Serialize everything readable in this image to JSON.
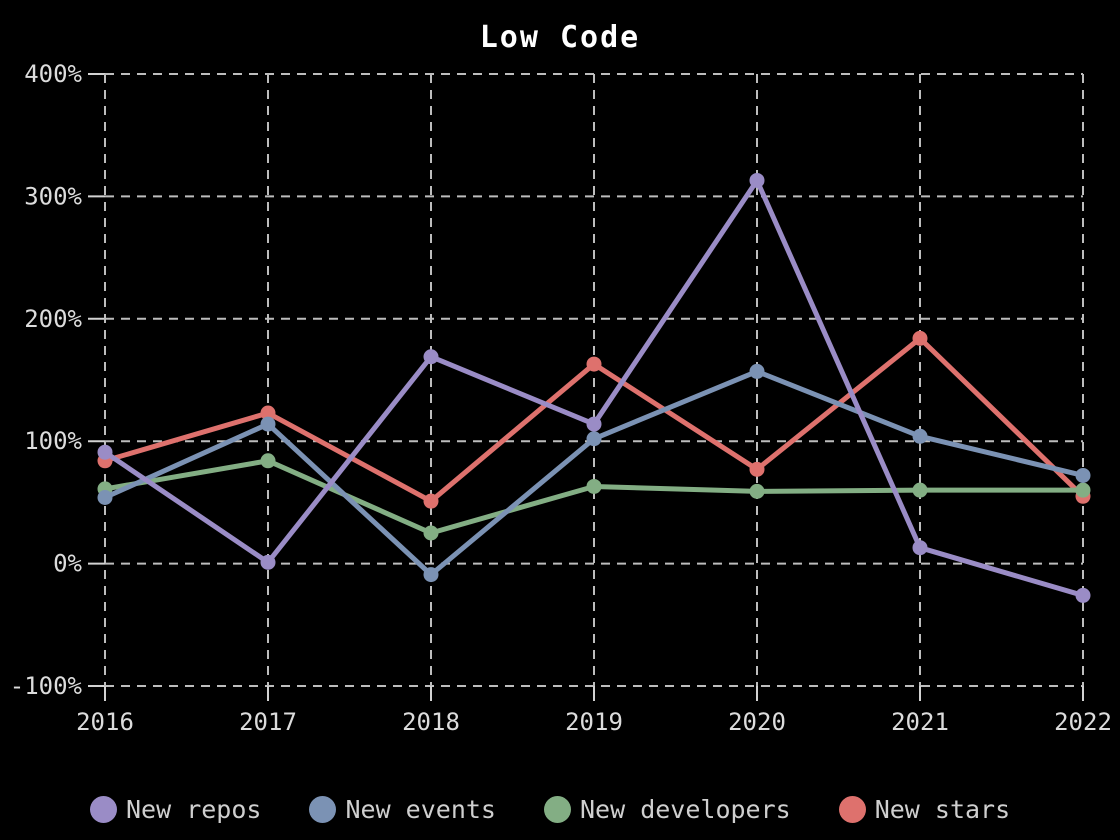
{
  "chart": {
    "title": "Low Code"
  },
  "chart_data": {
    "type": "line",
    "title": "Low Code",
    "categories": [
      "2016",
      "2017",
      "2018",
      "2019",
      "2020",
      "2021",
      "2022"
    ],
    "series": [
      {
        "name": "New repos",
        "color": "#9a8cc6",
        "values": [
          91,
          1,
          169,
          114,
          313,
          13,
          -26
        ]
      },
      {
        "name": "New events",
        "color": "#7b92b4",
        "values": [
          54,
          114,
          -9,
          102,
          157,
          104,
          72
        ]
      },
      {
        "name": "New developers",
        "color": "#83ae84",
        "values": [
          61,
          84,
          25,
          63,
          59,
          60,
          60
        ]
      },
      {
        "name": "New stars",
        "color": "#de716d",
        "values": [
          84,
          123,
          51,
          163,
          77,
          184,
          55
        ]
      }
    ],
    "xlabel": "",
    "ylabel": "",
    "ylim": [
      -100,
      400
    ],
    "yticks": [
      {
        "value": 400,
        "label": "400%"
      },
      {
        "value": 300,
        "label": "300%"
      },
      {
        "value": 200,
        "label": "200%"
      },
      {
        "value": 100,
        "label": "100%"
      },
      {
        "value": 0,
        "label": "0%"
      },
      {
        "value": -100,
        "label": "-100%"
      }
    ],
    "grid": true,
    "legend_position": "bottom",
    "colors": {
      "background": "#000000",
      "grid": "#bdbdbd",
      "tick_label": "#dcdcdc",
      "title": "#ffffff",
      "legend_text": "#cfcfcf"
    }
  }
}
